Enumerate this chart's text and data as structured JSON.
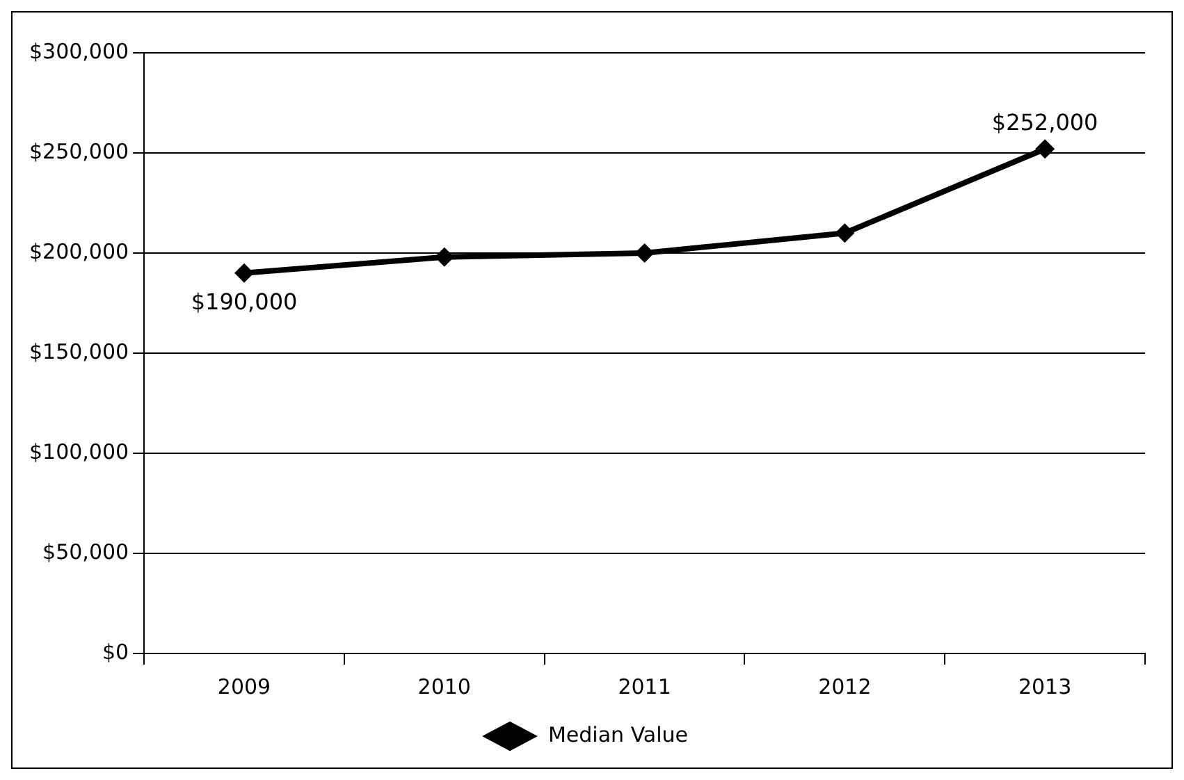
{
  "chart_data": {
    "type": "line",
    "categories": [
      "2009",
      "2010",
      "2011",
      "2012",
      "2013"
    ],
    "series": [
      {
        "name": "Median Value",
        "color": "#000000",
        "values": [
          190000,
          198000,
          200000,
          210000,
          252000
        ],
        "value_labels": [
          "$190,000",
          null,
          null,
          null,
          "$252,000"
        ]
      }
    ],
    "ylim": [
      0,
      300000
    ],
    "yticks": [
      {
        "value": 0,
        "label": "$0"
      },
      {
        "value": 50000,
        "label": "$50,000"
      },
      {
        "value": 100000,
        "label": "$100,000"
      },
      {
        "value": 150000,
        "label": "$150,000"
      },
      {
        "value": 200000,
        "label": "$200,000"
      },
      {
        "value": 250000,
        "label": "$250,000"
      },
      {
        "value": 300000,
        "label": "$300,000"
      }
    ],
    "grid": "y",
    "legend": "bottom",
    "marker": "diamond",
    "line_style": "solid"
  }
}
